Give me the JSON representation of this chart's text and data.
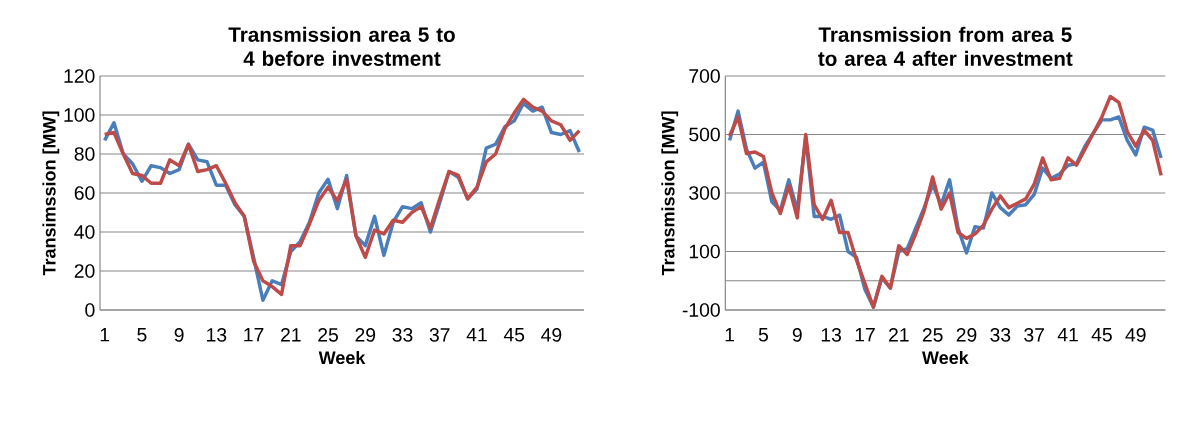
{
  "chart_data": [
    {
      "type": "line",
      "title": "Transmission area 5 to 4 before investment",
      "xlabel": "Week",
      "ylabel": "Transimssion [MW]",
      "categories": [
        "1",
        null,
        null,
        null,
        "5",
        null,
        null,
        null,
        "9",
        null,
        null,
        null,
        "13",
        null,
        null,
        null,
        "17",
        null,
        null,
        null,
        "21",
        null,
        null,
        null,
        "25",
        null,
        null,
        null,
        "29",
        null,
        null,
        null,
        "33",
        null,
        null,
        null,
        "37",
        null,
        null,
        null,
        "41",
        null,
        null,
        null,
        "45",
        null,
        null,
        null,
        "49",
        null,
        null,
        null
      ],
      "series": [
        {
          "color": "#4a7ebb",
          "values": [
            87,
            96,
            80,
            75,
            66,
            74,
            73,
            70,
            72,
            85,
            77,
            76,
            64,
            64,
            54,
            48,
            27,
            5,
            15,
            13,
            30,
            35,
            45,
            60,
            67,
            52,
            69,
            38,
            33,
            48,
            28,
            45,
            53,
            52,
            55,
            40,
            55,
            71,
            68,
            57,
            62,
            83,
            85,
            94,
            97,
            106,
            102,
            104,
            91,
            90,
            92,
            81
          ]
        },
        {
          "color": "#be4b48",
          "values": [
            90,
            91,
            80,
            70,
            69,
            65,
            65,
            77,
            74,
            85,
            71,
            72,
            74,
            65,
            55,
            48,
            25,
            15,
            12,
            8,
            33,
            33,
            44,
            56,
            63,
            56,
            67,
            38,
            27,
            41,
            39,
            46,
            45,
            50,
            53,
            42,
            57,
            71,
            69,
            57,
            63,
            76,
            80,
            93,
            101,
            108,
            104,
            102,
            97,
            95,
            87,
            92
          ]
        }
      ],
      "ylim": [
        0,
        120
      ],
      "yticks": [
        0,
        20,
        40,
        60,
        80,
        100,
        120
      ],
      "grid": "y",
      "marker": "none",
      "line_style": "solid"
    },
    {
      "type": "line",
      "title": "Transmission from area 5 to area 4 after investment",
      "xlabel": "Week",
      "ylabel": "Transmission [MW]",
      "categories": [
        "1",
        null,
        null,
        null,
        "5",
        null,
        null,
        null,
        "9",
        null,
        null,
        null,
        "13",
        null,
        null,
        null,
        "17",
        null,
        null,
        null,
        "21",
        null,
        null,
        null,
        "25",
        null,
        null,
        null,
        "29",
        null,
        null,
        null,
        "33",
        null,
        null,
        null,
        "37",
        null,
        null,
        null,
        "41",
        null,
        null,
        null,
        "45",
        null,
        null,
        null,
        "49",
        null,
        null,
        null
      ],
      "series": [
        {
          "color": "#4a7ebb",
          "values": [
            480,
            580,
            450,
            385,
            405,
            270,
            240,
            345,
            240,
            490,
            220,
            220,
            210,
            225,
            100,
            80,
            -30,
            -90,
            10,
            -25,
            100,
            110,
            180,
            250,
            330,
            260,
            345,
            180,
            95,
            185,
            180,
            300,
            250,
            225,
            255,
            260,
            295,
            385,
            350,
            365,
            395,
            400,
            460,
            505,
            550,
            550,
            560,
            480,
            430,
            525,
            515,
            420
          ]
        },
        {
          "color": "#be4b48",
          "values": [
            495,
            560,
            435,
            440,
            425,
            300,
            230,
            325,
            215,
            500,
            260,
            210,
            275,
            165,
            165,
            70,
            -10,
            -90,
            15,
            -25,
            120,
            90,
            160,
            240,
            355,
            245,
            300,
            165,
            145,
            160,
            190,
            245,
            290,
            250,
            265,
            280,
            330,
            420,
            345,
            350,
            420,
            395,
            450,
            505,
            560,
            630,
            610,
            510,
            460,
            515,
            480,
            360
          ]
        }
      ],
      "ylim": [
        -100,
        700
      ],
      "yticks": [
        -100,
        100,
        300,
        500,
        700
      ],
      "grid": "y",
      "ref_lines": [
        {
          "axis": "y",
          "value": 0,
          "color": "#868686"
        }
      ],
      "marker": "none",
      "line_style": "solid"
    }
  ]
}
